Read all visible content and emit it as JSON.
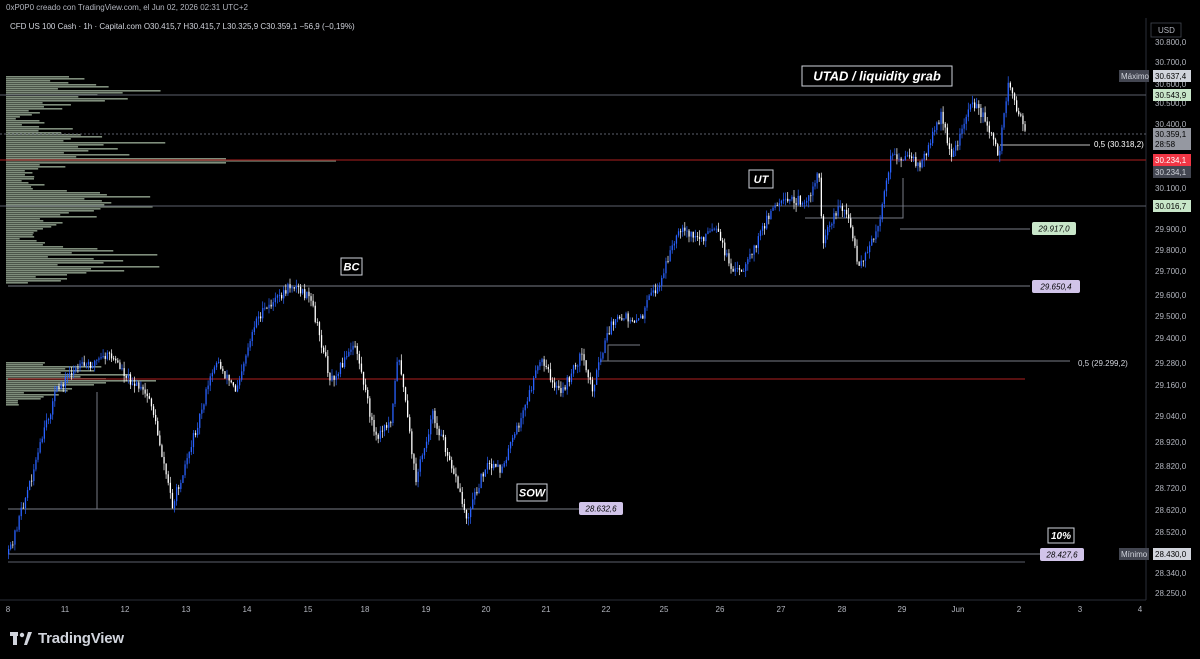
{
  "header": {
    "created_by": "0xP0P0 creado con TradingView.com, el Jun 02, 2026 02:31 UTC+2",
    "symbol_line": "CFD US 100 Cash · 1h · Capital.com  O30.415,7  H30.415,7  L30.325,9  C30.359,1  −56,9 (−0,19%)"
  },
  "footer": {
    "brand": "TradingView"
  },
  "colors": {
    "background": "#000000",
    "candle_up": "#2962ff",
    "candle_down": "#ffffff",
    "volume_profile": "#9fb29b",
    "red_line": "#8b1a1a",
    "grid_line": "#434651"
  },
  "price_axis": {
    "currency": "USD",
    "ticks": [
      "30.800,0",
      "30.700,0",
      "30.600,0",
      "30.500,0",
      "30.400,0",
      "30.300,0",
      "30.100,0",
      "29.900,0",
      "29.800,0",
      "29.700,0",
      "29.600,0",
      "29.500,0",
      "29.400,0",
      "29.280,0",
      "29.160,0",
      "29.040,0",
      "28.920,0",
      "28.820,0",
      "28.720,0",
      "28.620,0",
      "28.520,0",
      "28.340,0",
      "28.250,0"
    ],
    "tags": {
      "maximo": {
        "label": "Máximo",
        "value": "30.637,4"
      },
      "minimo": {
        "label": "Mínimo",
        "value": "28.430,0"
      },
      "green_top": "30.543,9",
      "last_price": "30.359,1",
      "countdown": "28:58",
      "red_tag": "30.234,1",
      "gray_tag": "30.234,1",
      "green_low": "30.016,7"
    }
  },
  "time_axis": {
    "labels": [
      "8",
      "11",
      "12",
      "13",
      "14",
      "15",
      "18",
      "19",
      "20",
      "21",
      "22",
      "25",
      "26",
      "27",
      "28",
      "29",
      "Jun",
      "2",
      "3",
      "4"
    ]
  },
  "annotations": {
    "utad": "UTAD / liquidity grab",
    "ut": "UT",
    "bc": "BC",
    "sow": "SOW",
    "ten_percent": "10%",
    "fib_top": "0,5 (30.318,2)",
    "fib_mid": "0,5 (29.299,2)",
    "lbl_29917": "29.917,0",
    "lbl_29650": "29.650,4",
    "lbl_28632": "28.632,6",
    "lbl_28427": "28.427,6"
  },
  "chart_data": {
    "type": "candlestick",
    "x_labels": [
      "8",
      "11",
      "12",
      "13",
      "14",
      "15",
      "18",
      "19",
      "20",
      "21",
      "22",
      "25",
      "26",
      "27",
      "28",
      "29",
      "Jun 1",
      "2"
    ],
    "price_closes_approx": [
      28430,
      29300,
      29340,
      28650,
      29500,
      29650,
      29100,
      28750,
      28800,
      29250,
      29450,
      29900,
      29700,
      30050,
      29750,
      30250,
      30500,
      30359.1
    ],
    "last": {
      "open": 30415.7,
      "high": 30415.7,
      "low": 30325.9,
      "close": 30359.1,
      "change": -56.9,
      "change_pct": -0.19
    },
    "high": 30637.4,
    "low": 28430.0,
    "horizontal_levels": [
      30543.9,
      30234.1,
      30016.7,
      29917.0,
      29650.4,
      29299.2,
      28632.6,
      28427.6
    ]
  }
}
